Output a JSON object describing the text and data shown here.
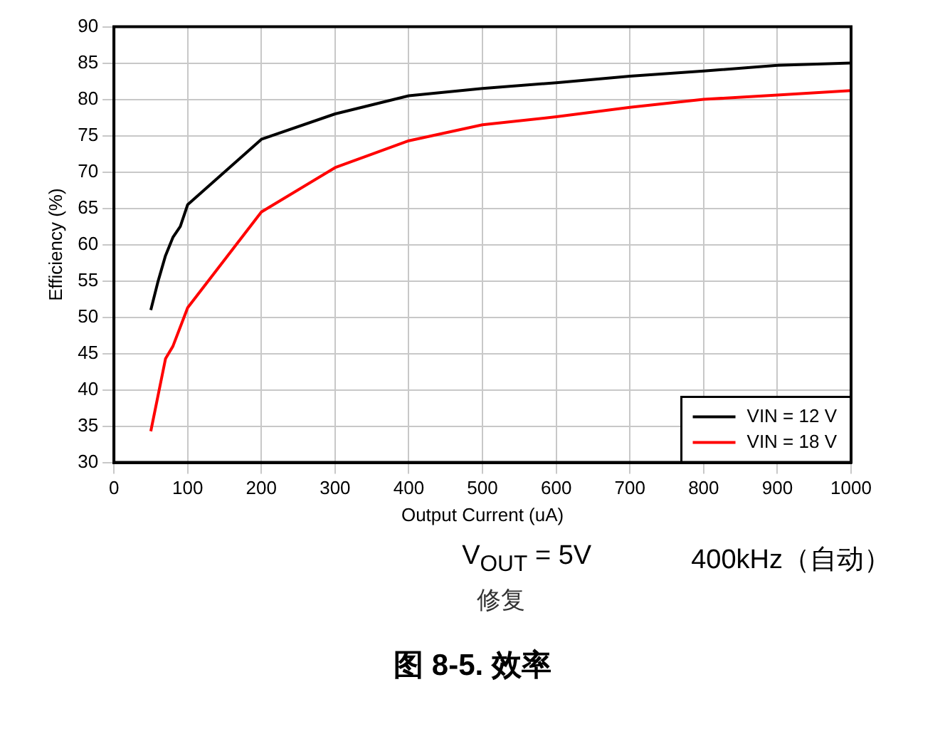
{
  "chart_data": {
    "type": "line",
    "title": "图 8-5. 效率",
    "xlabel": "Output Current (uA)",
    "ylabel": "Efficiency (%)",
    "xlim": [
      0,
      1000
    ],
    "xticks": [
      0,
      100,
      200,
      300,
      400,
      500,
      600,
      700,
      800,
      900,
      1000
    ],
    "ylim": [
      30,
      90
    ],
    "yticks": [
      30,
      35,
      40,
      45,
      50,
      55,
      60,
      65,
      70,
      75,
      80,
      85,
      90
    ],
    "grid": true,
    "legend": "bottom right",
    "marker": "none",
    "line_style": "solid",
    "series": [
      {
        "name": "VIN = 12 V",
        "color": "#000000",
        "x": [
          50,
          60,
          70,
          80,
          90,
          100,
          200,
          300,
          400,
          500,
          600,
          700,
          800,
          900,
          1000
        ],
        "values": [
          51,
          55,
          58.5,
          61,
          62.5,
          65.5,
          74.5,
          78,
          80.5,
          81.5,
          82.3,
          83.2,
          83.9,
          84.7,
          85
        ]
      },
      {
        "name": "VIN = 18 V",
        "color": "#ff0000",
        "x": [
          50,
          70,
          80,
          100,
          200,
          300,
          400,
          500,
          600,
          700,
          800,
          900,
          1000
        ],
        "values": [
          34.3,
          44.3,
          46,
          51.3,
          64.5,
          70.6,
          74.3,
          76.5,
          77.6,
          78.9,
          80,
          80.6,
          81.2
        ]
      }
    ],
    "annotations": [
      "V$_{OUT}$ = 5V",
      "400kHz（自动）",
      "修复"
    ]
  }
}
